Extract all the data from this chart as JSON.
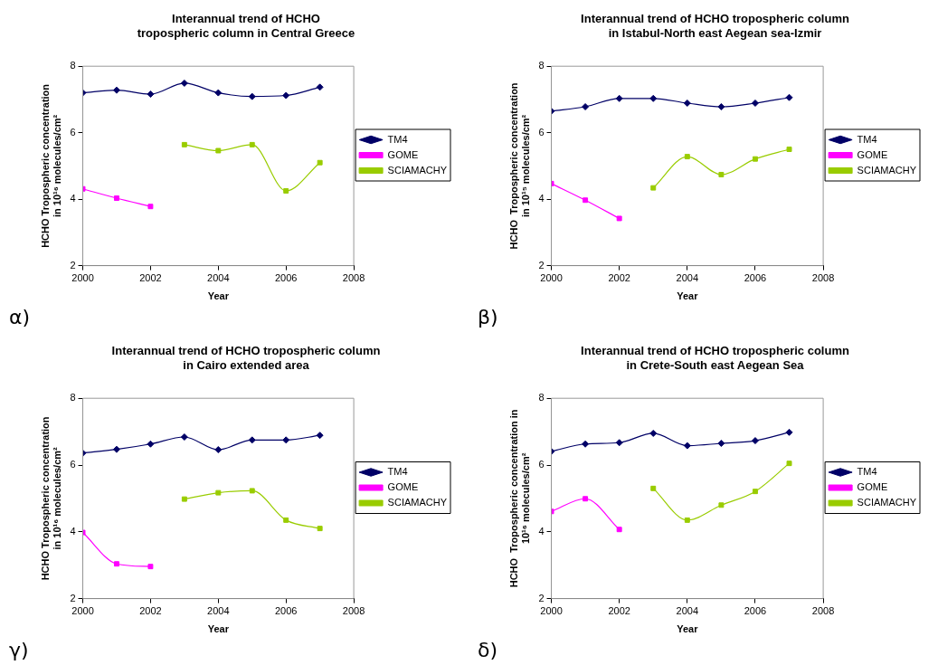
{
  "chart_data": [
    {
      "type": "line",
      "title": [
        "Interannual trend of HCHO",
        "tropospheric column in Central Greece"
      ],
      "xlabel": "Year",
      "ylabel": [
        "HCHO Tropospheric concentration",
        "in 10¹⁶ molecules/cm²"
      ],
      "x": [
        2000,
        2001,
        2002,
        2003,
        2004,
        2005,
        2006,
        2007
      ],
      "xlim": [
        2000,
        2008
      ],
      "xticks": [
        2000,
        2002,
        2004,
        2006,
        2008
      ],
      "ylim": [
        2,
        8
      ],
      "yticks": [
        2,
        4,
        6,
        8
      ],
      "grid": false,
      "legend": "right",
      "line_style": "solid",
      "annotations": [
        "α)"
      ],
      "series": [
        {
          "name": "TM4",
          "color": "#000066",
          "marker": "diamond",
          "values": [
            7.2,
            7.28,
            7.16,
            7.49,
            7.2,
            7.09,
            7.12,
            7.37
          ]
        },
        {
          "name": "GOME",
          "color": "#ff00ff",
          "marker": "square",
          "values": [
            4.31,
            4.03,
            3.78,
            null,
            null,
            null,
            null,
            null
          ]
        },
        {
          "name": "SCIAMACHY",
          "color": "#99cc00",
          "marker": "square",
          "values": [
            null,
            null,
            null,
            5.64,
            5.46,
            5.64,
            4.25,
            5.1
          ]
        }
      ]
    },
    {
      "type": "line",
      "title": [
        "Interannual trend of HCHO tropospheric column",
        "in Istabul-North east Aegean sea-Izmir"
      ],
      "xlabel": "Year",
      "ylabel": [
        "HCHO  Tropospheric concentration",
        "in 10¹⁵ molecules/cm²"
      ],
      "x": [
        2000,
        2001,
        2002,
        2003,
        2004,
        2005,
        2006,
        2007
      ],
      "xlim": [
        2000,
        2008
      ],
      "xticks": [
        2000,
        2002,
        2004,
        2006,
        2008
      ],
      "ylim": [
        2,
        8
      ],
      "yticks": [
        2,
        4,
        6,
        8
      ],
      "grid": false,
      "legend": "right",
      "line_style": "solid",
      "annotations": [
        "β)"
      ],
      "series": [
        {
          "name": "TM4",
          "color": "#000066",
          "marker": "diamond",
          "values": [
            6.65,
            6.78,
            7.03,
            7.03,
            6.89,
            6.78,
            6.89,
            7.06
          ]
        },
        {
          "name": "GOME",
          "color": "#ff00ff",
          "marker": "square",
          "values": [
            4.47,
            3.97,
            3.42,
            null,
            null,
            null,
            null,
            null
          ]
        },
        {
          "name": "SCIAMACHY",
          "color": "#99cc00",
          "marker": "square",
          "values": [
            null,
            null,
            null,
            4.34,
            5.28,
            4.74,
            5.21,
            5.5
          ]
        }
      ]
    },
    {
      "type": "line",
      "title": [
        "Interannual trend of HCHO tropospheric column",
        "in Cairo extended area"
      ],
      "xlabel": "Year",
      "ylabel": [
        "HCHO Tropospheric concentration",
        "in 10¹⁶ molecules/cm²"
      ],
      "x": [
        2000,
        2001,
        2002,
        2003,
        2004,
        2005,
        2006,
        2007
      ],
      "xlim": [
        2000,
        2008
      ],
      "xticks": [
        2000,
        2002,
        2004,
        2006,
        2008
      ],
      "ylim": [
        2,
        8
      ],
      "yticks": [
        2,
        4,
        6,
        8
      ],
      "grid": false,
      "legend": "right",
      "line_style": "solid",
      "annotations": [
        "γ)"
      ],
      "series": [
        {
          "name": "TM4",
          "color": "#000066",
          "marker": "diamond",
          "values": [
            6.36,
            6.47,
            6.63,
            6.84,
            6.46,
            6.75,
            6.75,
            6.89
          ]
        },
        {
          "name": "GOME",
          "color": "#ff00ff",
          "marker": "square",
          "values": [
            3.98,
            3.04,
            2.96,
            null,
            null,
            null,
            null,
            null
          ]
        },
        {
          "name": "SCIAMACHY",
          "color": "#99cc00",
          "marker": "square",
          "values": [
            null,
            null,
            null,
            4.98,
            5.17,
            5.23,
            4.35,
            4.1
          ]
        }
      ]
    },
    {
      "type": "line",
      "title": [
        "Interannual trend of HCHO tropospheric column",
        "in Crete-South east Aegean Sea"
      ],
      "xlabel": "Year",
      "ylabel": [
        "HCHO  Tropospheric concentration in",
        "10¹⁶ molecules/cm²"
      ],
      "x": [
        2000,
        2001,
        2002,
        2003,
        2004,
        2005,
        2006,
        2007
      ],
      "xlim": [
        2000,
        2008
      ],
      "xticks": [
        2000,
        2002,
        2004,
        2006,
        2008
      ],
      "ylim": [
        2,
        8
      ],
      "yticks": [
        2,
        4,
        6,
        8
      ],
      "grid": false,
      "legend": "right",
      "line_style": "solid",
      "annotations": [
        "δ)"
      ],
      "series": [
        {
          "name": "TM4",
          "color": "#000066",
          "marker": "diamond",
          "values": [
            6.41,
            6.63,
            6.67,
            6.95,
            6.58,
            6.65,
            6.73,
            6.98
          ]
        },
        {
          "name": "GOME",
          "color": "#ff00ff",
          "marker": "square",
          "values": [
            4.61,
            4.99,
            4.07,
            null,
            null,
            null,
            null,
            null
          ]
        },
        {
          "name": "SCIAMACHY",
          "color": "#99cc00",
          "marker": "square",
          "values": [
            null,
            null,
            null,
            5.3,
            4.35,
            4.8,
            5.21,
            6.05
          ]
        }
      ]
    }
  ]
}
